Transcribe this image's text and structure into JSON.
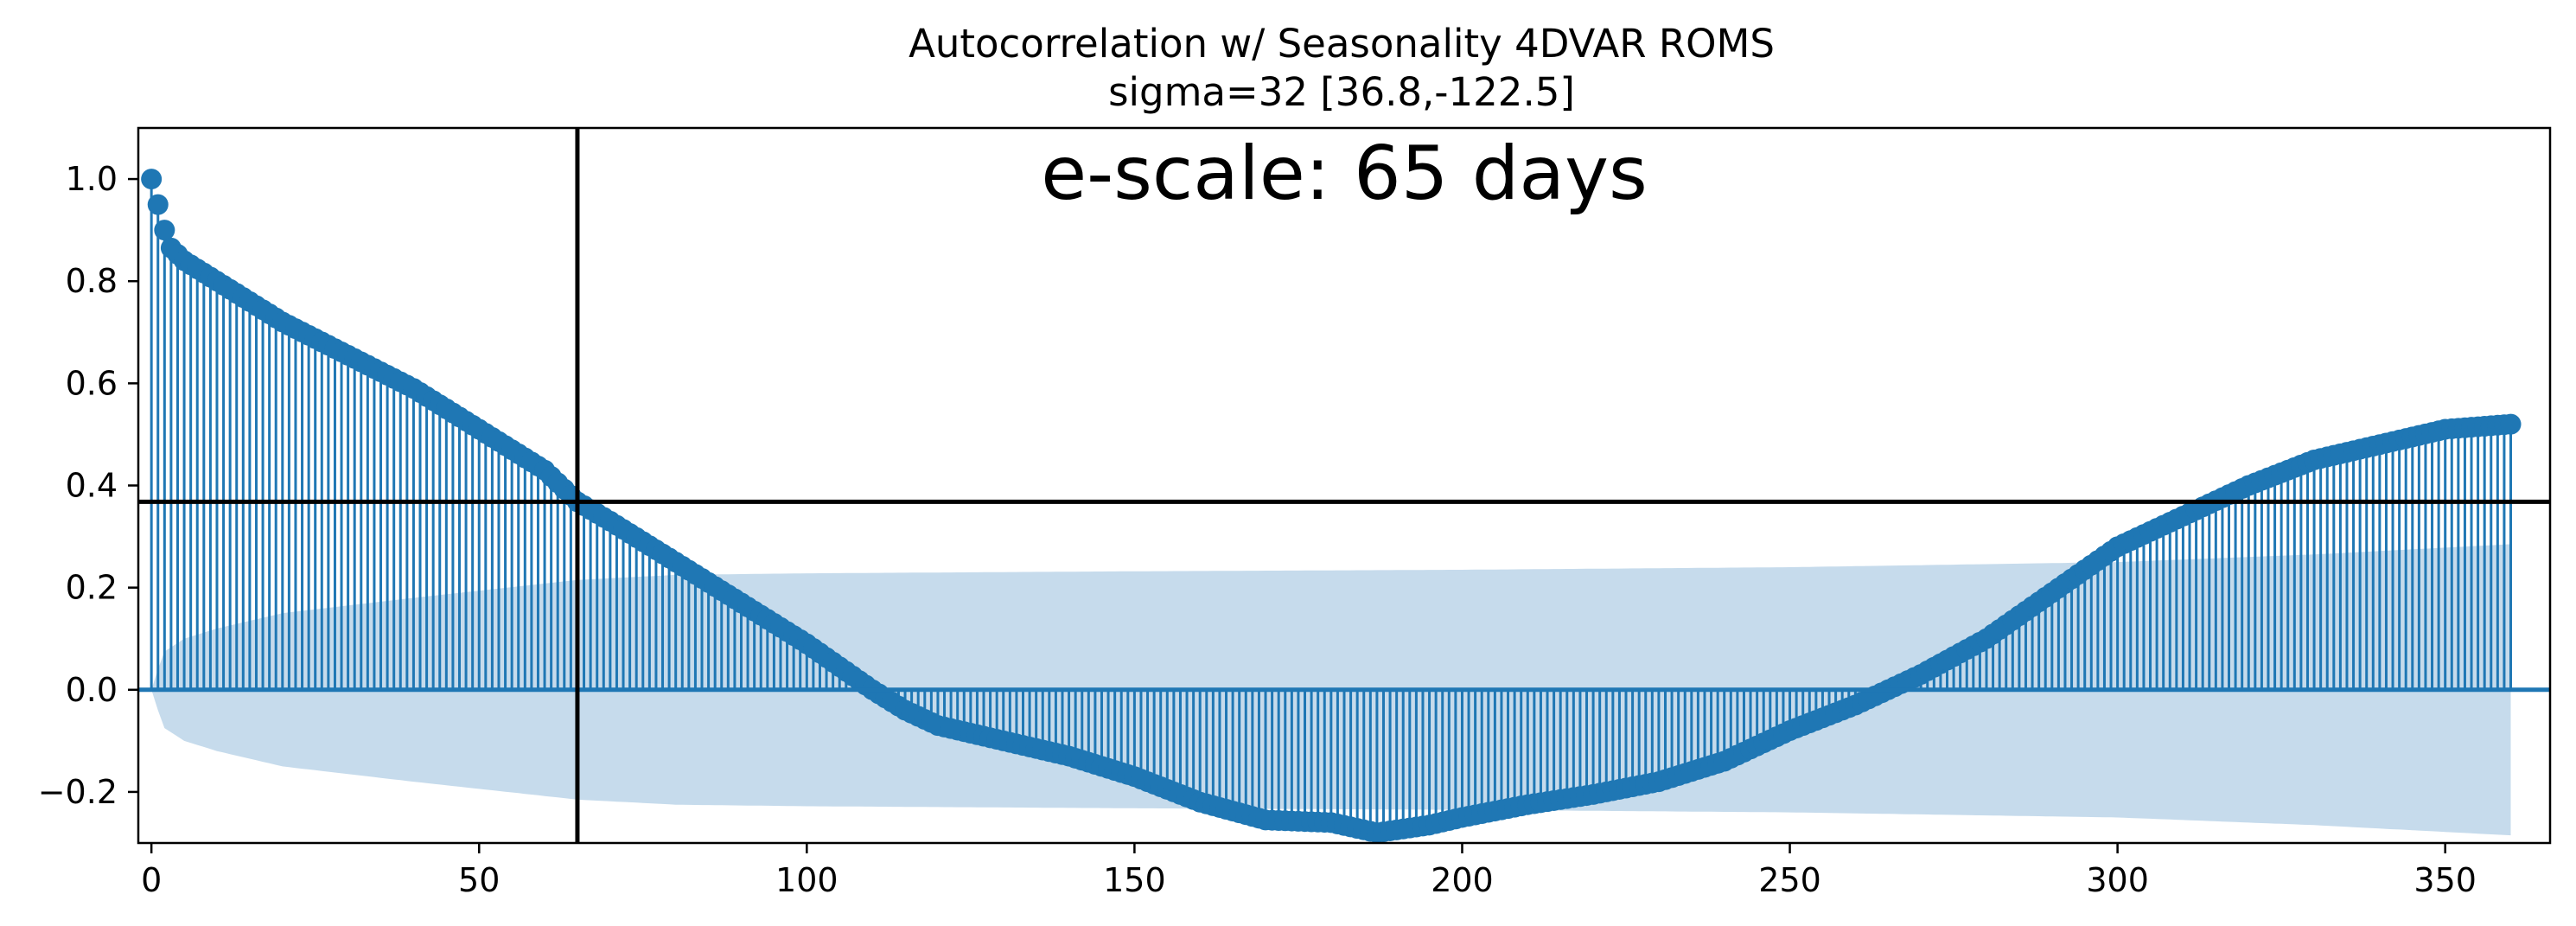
{
  "chart_data": {
    "type": "stem",
    "title": "Autocorrelation w/ Seasonality 4DVAR ROMS",
    "subtitle": "sigma=32 [36.8,-122.5]",
    "xlabel": "",
    "ylabel": "",
    "annotation": "e-scale: 65 days",
    "xlim": [
      -2,
      366
    ],
    "ylim": [
      -0.3,
      1.1
    ],
    "xticks": [
      0,
      50,
      100,
      150,
      200,
      250,
      300,
      350
    ],
    "xtick_labels": [
      "0",
      "50",
      "100",
      "150",
      "200",
      "250",
      "300",
      "350"
    ],
    "yticks": [
      -0.2,
      0.0,
      0.2,
      0.4,
      0.6,
      0.8,
      1.0
    ],
    "ytick_labels": [
      "−0.2",
      "0.0",
      "0.2",
      "0.4",
      "0.6",
      "0.8",
      "1.0"
    ],
    "grid": false,
    "reference_lines": {
      "vertical_x": 65,
      "horizontal_y": 0.368
    },
    "acf_keypoints": [
      [
        0,
        1.0
      ],
      [
        1,
        0.95
      ],
      [
        2,
        0.9
      ],
      [
        3,
        0.865
      ],
      [
        5,
        0.84
      ],
      [
        10,
        0.8
      ],
      [
        20,
        0.72
      ],
      [
        30,
        0.655
      ],
      [
        40,
        0.59
      ],
      [
        50,
        0.51
      ],
      [
        60,
        0.43
      ],
      [
        65,
        0.368
      ],
      [
        70,
        0.33
      ],
      [
        80,
        0.25
      ],
      [
        90,
        0.17
      ],
      [
        100,
        0.09
      ],
      [
        110,
        0.0
      ],
      [
        115,
        -0.04
      ],
      [
        120,
        -0.07
      ],
      [
        130,
        -0.1
      ],
      [
        140,
        -0.13
      ],
      [
        150,
        -0.17
      ],
      [
        160,
        -0.22
      ],
      [
        170,
        -0.255
      ],
      [
        180,
        -0.26
      ],
      [
        187,
        -0.28
      ],
      [
        195,
        -0.265
      ],
      [
        200,
        -0.25
      ],
      [
        210,
        -0.225
      ],
      [
        220,
        -0.205
      ],
      [
        230,
        -0.18
      ],
      [
        240,
        -0.14
      ],
      [
        250,
        -0.08
      ],
      [
        260,
        -0.03
      ],
      [
        265,
        0.0
      ],
      [
        270,
        0.03
      ],
      [
        280,
        0.1
      ],
      [
        290,
        0.19
      ],
      [
        300,
        0.28
      ],
      [
        310,
        0.34
      ],
      [
        320,
        0.4
      ],
      [
        330,
        0.45
      ],
      [
        340,
        0.48
      ],
      [
        350,
        0.51
      ],
      [
        360,
        0.52
      ]
    ],
    "confidence_band_keypoints": [
      [
        0,
        0.0
      ],
      [
        1,
        0.04
      ],
      [
        2,
        0.075
      ],
      [
        5,
        0.1
      ],
      [
        10,
        0.12
      ],
      [
        20,
        0.15
      ],
      [
        40,
        0.18
      ],
      [
        65,
        0.215
      ],
      [
        80,
        0.225
      ],
      [
        100,
        0.228
      ],
      [
        150,
        0.232
      ],
      [
        200,
        0.235
      ],
      [
        250,
        0.24
      ],
      [
        300,
        0.25
      ],
      [
        330,
        0.265
      ],
      [
        360,
        0.285
      ]
    ],
    "colors": {
      "stem": "#1f77b4",
      "band": "#c6dbec",
      "reference": "#000000",
      "axis": "#000000"
    }
  }
}
